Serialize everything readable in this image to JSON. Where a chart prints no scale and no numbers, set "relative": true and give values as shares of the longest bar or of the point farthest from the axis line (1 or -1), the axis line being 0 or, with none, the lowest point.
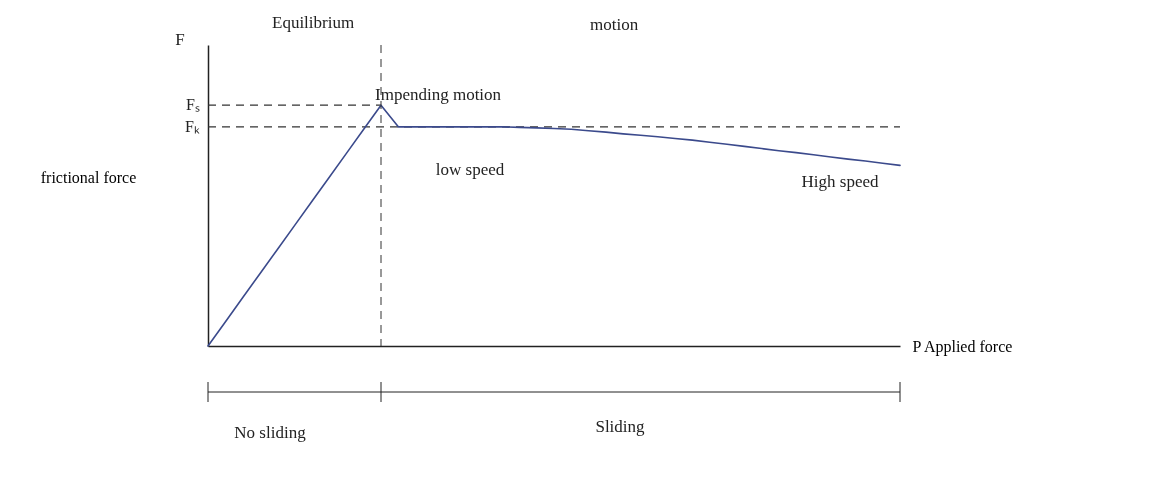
{
  "chart_data": {
    "type": "line",
    "relative": true,
    "xlabel": "P  Applied force",
    "ylabel": "frictional force",
    "categories": [
      null,
      null,
      null,
      null,
      null,
      null,
      null,
      null,
      null,
      null,
      null,
      null,
      null,
      null,
      null,
      null,
      null,
      null,
      null,
      null,
      null,
      null,
      null,
      null,
      null,
      null,
      null,
      null,
      null,
      null,
      null,
      null,
      null,
      null,
      null,
      null,
      null,
      null,
      null,
      null,
      null
    ],
    "series": [
      {
        "color": "#3b4a8c",
        "values": [
          0,
          0.1,
          0.2,
          0.3,
          0.4,
          0.5,
          0.6,
          0.7,
          0.8,
          0.9,
          1,
          0.91,
          0.91,
          0.91,
          0.91,
          0.91,
          0.91,
          0.91,
          0.908,
          0.906,
          0.903,
          0.9,
          0.894,
          0.888,
          0.881,
          0.875,
          0.869,
          0.862,
          0.855,
          0.846,
          0.838,
          0.829,
          0.82,
          0.811,
          0.803,
          0.794,
          0.785,
          0.776,
          0.768,
          0.759,
          0.75
        ]
      }
    ],
    "line_style": "solid",
    "ref_lines": [
      {
        "axis": "y",
        "value": 1,
        "label": "Fₛ",
        "line_style": "dashed",
        "color": "#333333"
      },
      {
        "axis": "y",
        "value": 0.91,
        "label": "Fₖ",
        "line_style": "dashed",
        "color": "#333333"
      }
    ],
    "annotations": [
      "F",
      "Equilibrium",
      "motion",
      "Impending motion",
      "low speed",
      "High speed",
      "No sliding",
      "Sliding"
    ]
  }
}
